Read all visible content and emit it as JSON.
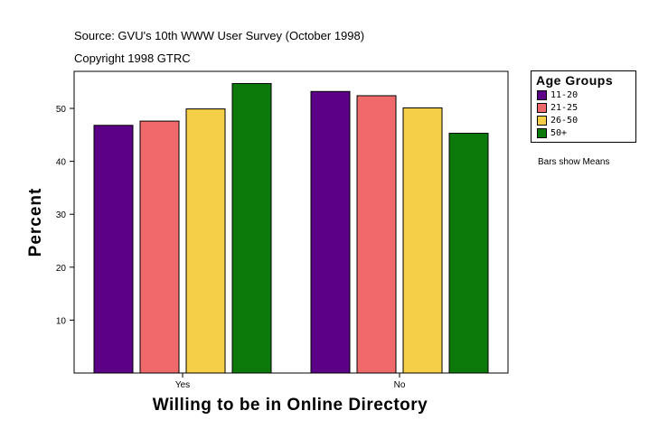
{
  "source_line1": "Source: GVU's 10th WWW User Survey (October 1998)",
  "source_line2": "Copyright 1998 GTRC",
  "note": "Bars show Means",
  "colors": {
    "11-20": "#5c0087",
    "21-25": "#f06a6c",
    "26-50": "#f5cf48",
    "50+": "#0b7a0b"
  },
  "chart_data": {
    "type": "bar",
    "categories": [
      "Yes",
      "No"
    ],
    "series": [
      {
        "name": "11-20",
        "values": [
          46.8,
          53.2
        ]
      },
      {
        "name": "21-25",
        "values": [
          47.6,
          52.4
        ]
      },
      {
        "name": "26-50",
        "values": [
          49.9,
          50.1
        ]
      },
      {
        "name": "50+",
        "values": [
          54.7,
          45.3
        ]
      }
    ],
    "xlabel": "Willing to be in Online Directory",
    "ylabel": "Percent",
    "ylim": [
      0,
      57
    ],
    "yticks": [
      10,
      20,
      30,
      40,
      50
    ],
    "legend": {
      "title": "Age Groups",
      "position": "right"
    },
    "grid": false
  }
}
